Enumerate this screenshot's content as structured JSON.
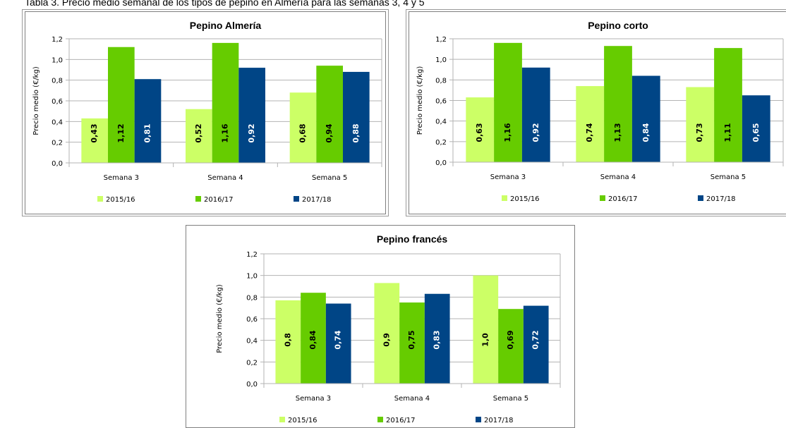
{
  "header_text": "Tabla 3. Precio medio semanal de los tipos de pepino en Almería para las semanas 3, 4 y 5",
  "chart_data": [
    {
      "type": "bar",
      "title": "Pepino Almería",
      "ylabel": "Precio medio (€/kg)",
      "xlabel": "",
      "ylim": [
        0,
        1.2
      ],
      "ytick_labels": [
        "0,0",
        "0,2",
        "0,4",
        "0,6",
        "0,8",
        "1,0",
        "1,2"
      ],
      "categories": [
        "Semana 3",
        "Semana 4",
        "Semana 5"
      ],
      "series": [
        {
          "name": "2015/16",
          "color": "#ccff66",
          "values": [
            0.43,
            0.52,
            0.68
          ],
          "labels": [
            "0,43",
            "0,52",
            "0,68"
          ]
        },
        {
          "name": "2016/17",
          "color": "#66cc00",
          "values": [
            1.12,
            1.16,
            0.94
          ],
          "labels": [
            "1,12",
            "1,16",
            "0,94"
          ]
        },
        {
          "name": "2017/18",
          "color": "#004586",
          "values": [
            0.81,
            0.92,
            0.88
          ],
          "labels": [
            "0,81",
            "0,92",
            "0,88"
          ]
        }
      ],
      "grid": true,
      "legend": "bottom"
    },
    {
      "type": "bar",
      "title": "Pepino corto",
      "ylabel": "Precio medio (€/kg)",
      "xlabel": "",
      "ylim": [
        0,
        1.2
      ],
      "ytick_labels": [
        "0,0",
        "0,2",
        "0,4",
        "0,6",
        "0,8",
        "1,0",
        "1,2"
      ],
      "categories": [
        "Semana 3",
        "Semana 4",
        "Semana 5"
      ],
      "series": [
        {
          "name": "2015/16",
          "color": "#ccff66",
          "values": [
            0.63,
            0.74,
            0.73
          ],
          "labels": [
            "0,63",
            "0,74",
            "0,73"
          ]
        },
        {
          "name": "2016/17",
          "color": "#66cc00",
          "values": [
            1.16,
            1.13,
            1.11
          ],
          "labels": [
            "1,16",
            "1,13",
            "1,11"
          ]
        },
        {
          "name": "2017/18",
          "color": "#004586",
          "values": [
            0.92,
            0.84,
            0.65
          ],
          "labels": [
            "0,92",
            "0,84",
            "0,65"
          ]
        }
      ],
      "grid": true,
      "legend": "bottom"
    },
    {
      "type": "bar",
      "title": "Pepino francés",
      "ylabel": "Precio medio (€/kg)",
      "xlabel": "",
      "ylim": [
        0,
        1.2
      ],
      "ytick_labels": [
        "0,0",
        "0,2",
        "0,4",
        "0,6",
        "0,8",
        "1,0",
        "1,2"
      ],
      "categories": [
        "Semana 3",
        "Semana 4",
        "Semana 5"
      ],
      "series": [
        {
          "name": "2015/16",
          "color": "#ccff66",
          "values": [
            0.77,
            0.93,
            1.0
          ],
          "labels": [
            "0,8",
            "0,9",
            "1,0"
          ]
        },
        {
          "name": "2016/17",
          "color": "#66cc00",
          "values": [
            0.84,
            0.75,
            0.69
          ],
          "labels": [
            "0,84",
            "0,75",
            "0,69"
          ]
        },
        {
          "name": "2017/18",
          "color": "#004586",
          "values": [
            0.74,
            0.83,
            0.72
          ],
          "labels": [
            "0,74",
            "0,83",
            "0,72"
          ]
        }
      ],
      "grid": true,
      "legend": "bottom"
    }
  ]
}
